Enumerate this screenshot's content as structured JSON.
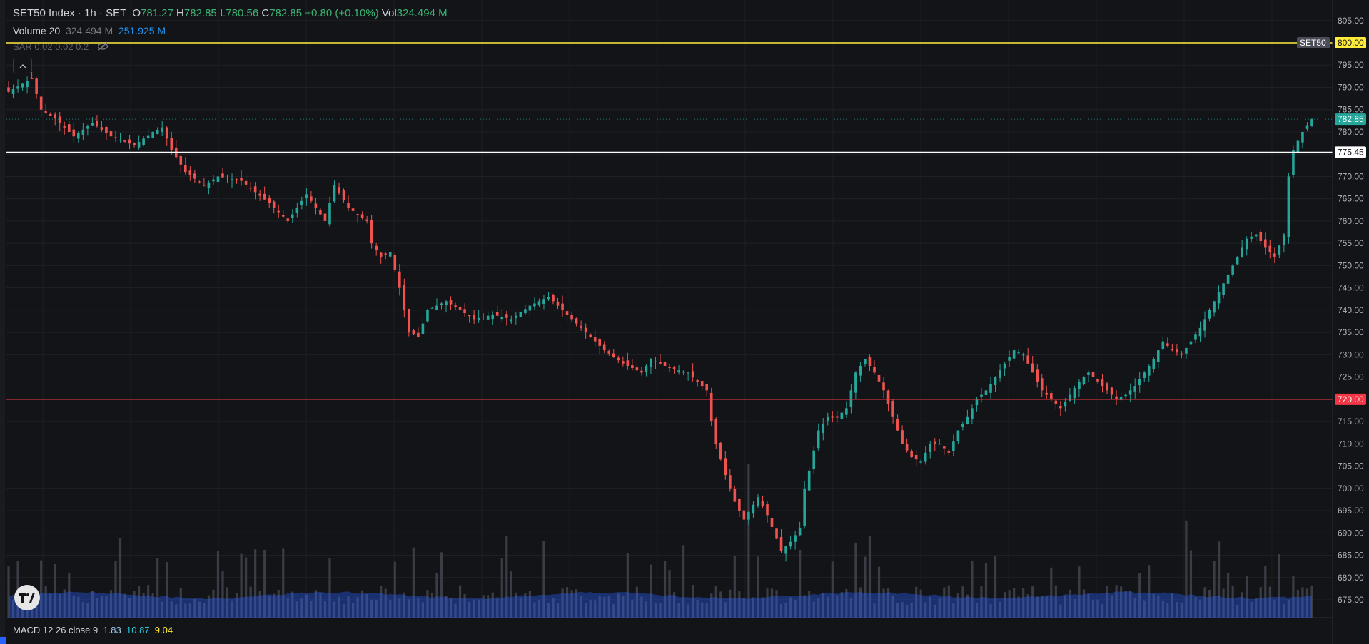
{
  "legend": {
    "symbol": "SET50 Index · 1h · SET",
    "o_label": "O",
    "o_value": "781.27",
    "h_label": "H",
    "h_value": "782.85",
    "l_label": "L",
    "l_value": "780.56",
    "c_label": "C",
    "c_value": "782.85",
    "change": "+0.80 (+0.10%)",
    "vol_label": "Vol",
    "vol_value": "324.494 M",
    "volume_indicator": "Volume 20",
    "volume_value": "324.494 M",
    "volume_ma": "251.925 M",
    "sar_indicator": "SAR 0.02 0.02 0.2",
    "macd_indicator": "MACD 12 26 close 9",
    "macd_values": [
      "1.83",
      "10.87",
      "9.04"
    ]
  },
  "colors": {
    "up": "#26a69a",
    "down": "#ef5350",
    "volume_ma_area": "#2962ff",
    "support_line": "#f23645",
    "resistance_line": "#ffeb3b",
    "mid_line": "#ffffff"
  },
  "icons": [
    "eye-off-icon",
    "chevron-up-icon",
    "tradingview-logo-icon"
  ],
  "chart_data": {
    "type": "candlestick",
    "interval": "1h",
    "symbol": "SET50 Index",
    "y_ticks": [
      675,
      680,
      685,
      690,
      695,
      700,
      705,
      710,
      715,
      720,
      725,
      730,
      735,
      740,
      745,
      750,
      755,
      760,
      765,
      770,
      775,
      780,
      785,
      790,
      795,
      800,
      805
    ],
    "y_tick_labels": [
      "675.00",
      "680.00",
      "685.00",
      "690.00",
      "695.00",
      "700.00",
      "705.00",
      "710.00",
      "715.00",
      "720.00",
      "725.00",
      "730.00",
      "735.00",
      "740.00",
      "745.00",
      "750.00",
      "755.00",
      "760.00",
      "765.00",
      "770.00",
      "775.00",
      "780.00",
      "785.00",
      "790.00",
      "795.00",
      "800.00",
      "805.00"
    ],
    "ylim": [
      671,
      808
    ],
    "last_price": 782.85,
    "last_price_label": "782.85",
    "horizontal_lines": [
      {
        "value": 800.0,
        "label": "800.00",
        "name": "SET50",
        "color": "#ffeb3b"
      },
      {
        "value": 775.45,
        "label": "775.45",
        "color": "#ffffff"
      },
      {
        "value": 720.0,
        "label": "720.00",
        "color": "#f23645"
      }
    ],
    "close_path": [
      [
        0,
        789
      ],
      [
        5,
        792
      ],
      [
        7,
        785
      ],
      [
        10,
        783
      ],
      [
        14,
        779
      ],
      [
        18,
        782
      ],
      [
        22,
        779
      ],
      [
        27,
        777
      ],
      [
        31,
        780
      ],
      [
        33,
        781
      ],
      [
        35,
        776
      ],
      [
        38,
        771
      ],
      [
        42,
        768
      ],
      [
        45,
        770
      ],
      [
        50,
        769
      ],
      [
        56,
        764
      ],
      [
        60,
        760
      ],
      [
        64,
        766
      ],
      [
        68,
        760
      ],
      [
        70,
        768
      ],
      [
        73,
        763
      ],
      [
        77,
        760
      ],
      [
        78,
        755
      ],
      [
        80,
        752
      ],
      [
        82,
        753
      ],
      [
        84,
        745
      ],
      [
        86,
        735
      ],
      [
        88,
        734
      ],
      [
        90,
        740
      ],
      [
        94,
        742
      ],
      [
        97,
        740
      ],
      [
        100,
        738
      ],
      [
        104,
        739
      ],
      [
        108,
        738
      ],
      [
        112,
        741
      ],
      [
        116,
        743
      ],
      [
        120,
        739
      ],
      [
        124,
        735
      ],
      [
        128,
        731
      ],
      [
        132,
        728
      ],
      [
        136,
        726
      ],
      [
        138,
        729
      ],
      [
        142,
        727
      ],
      [
        146,
        726
      ],
      [
        150,
        722
      ],
      [
        151,
        715
      ],
      [
        152,
        710
      ],
      [
        154,
        703
      ],
      [
        156,
        697
      ],
      [
        158,
        693
      ],
      [
        161,
        698
      ],
      [
        163,
        694
      ],
      [
        166,
        686
      ],
      [
        168,
        688
      ],
      [
        170,
        691
      ],
      [
        171,
        700
      ],
      [
        172,
        704
      ],
      [
        174,
        713
      ],
      [
        176,
        716
      ],
      [
        178,
        716
      ],
      [
        180,
        718
      ],
      [
        182,
        726
      ],
      [
        184,
        729
      ],
      [
        186,
        726
      ],
      [
        188,
        722
      ],
      [
        190,
        716
      ],
      [
        192,
        710
      ],
      [
        194,
        707
      ],
      [
        196,
        706
      ],
      [
        198,
        710
      ],
      [
        200,
        710
      ],
      [
        202,
        708
      ],
      [
        204,
        713
      ],
      [
        206,
        716
      ],
      [
        208,
        720
      ],
      [
        210,
        722
      ],
      [
        212,
        725
      ],
      [
        214,
        728
      ],
      [
        216,
        731
      ],
      [
        218,
        730
      ],
      [
        220,
        726
      ],
      [
        222,
        722
      ],
      [
        224,
        720
      ],
      [
        226,
        718
      ],
      [
        228,
        721
      ],
      [
        230,
        724
      ],
      [
        232,
        726
      ],
      [
        234,
        724
      ],
      [
        236,
        722
      ],
      [
        238,
        720
      ],
      [
        240,
        721
      ],
      [
        242,
        723
      ],
      [
        244,
        726
      ],
      [
        246,
        729
      ],
      [
        248,
        733
      ],
      [
        250,
        731
      ],
      [
        252,
        730
      ],
      [
        254,
        733
      ],
      [
        256,
        736
      ],
      [
        258,
        740
      ],
      [
        260,
        744
      ],
      [
        262,
        748
      ],
      [
        264,
        752
      ],
      [
        266,
        756
      ],
      [
        268,
        757
      ],
      [
        270,
        754
      ],
      [
        272,
        752
      ],
      [
        274,
        757
      ],
      [
        275,
        770
      ],
      [
        276,
        776
      ],
      [
        277,
        778
      ],
      [
        278,
        780
      ],
      [
        279,
        781.5
      ],
      [
        280,
        782.85
      ]
    ],
    "bars_count": 281,
    "volume": {
      "label": "Volume 20",
      "typical": "≈ 250 M per bar",
      "ma_value_label": "251.925 M",
      "last_label": "324.494 M"
    },
    "macd": {
      "params": "12 26 close 9",
      "values": [
        1.83,
        10.87,
        9.04
      ]
    },
    "grid": true,
    "legend_position": "top-left"
  }
}
